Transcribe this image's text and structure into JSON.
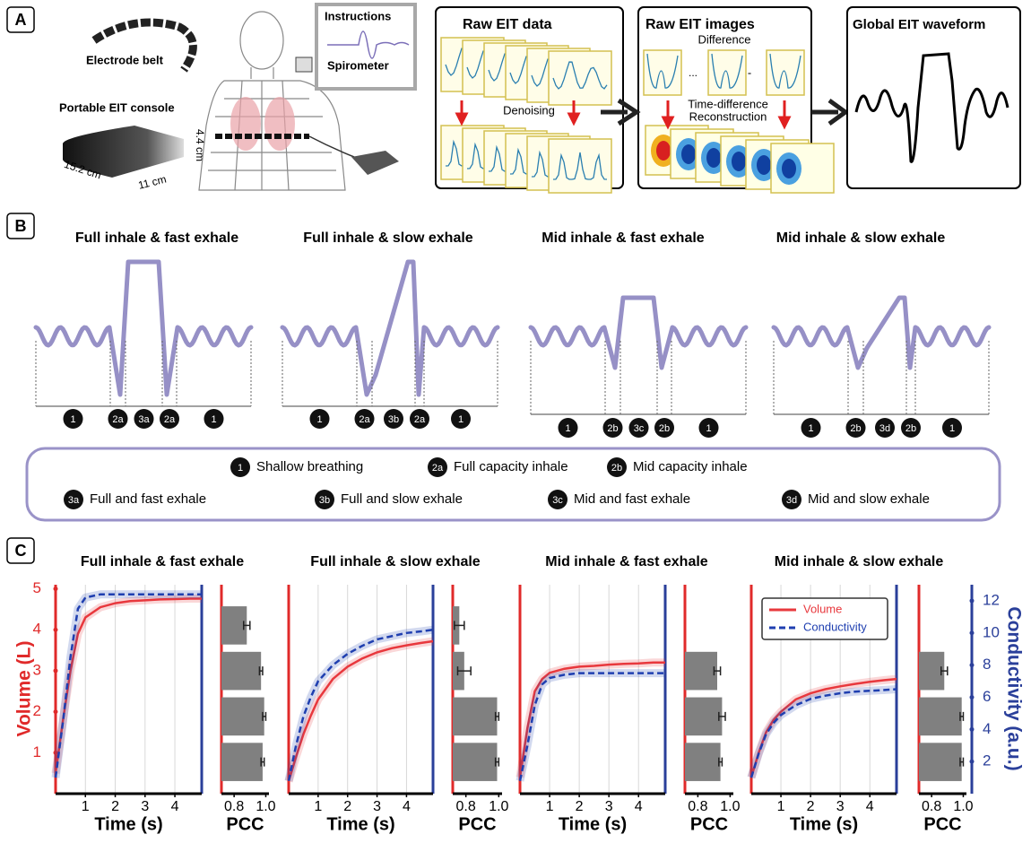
{
  "panel_a": {
    "label": "A",
    "belt": "Electrode belt",
    "console": "Portable EIT console",
    "dims": [
      "15.2 cm",
      "11 cm",
      "4.4 cm"
    ],
    "instructions": "Instructions",
    "spirometer": "Spirometer",
    "raw_data": {
      "title": "Raw EIT data",
      "step": "Denoising"
    },
    "raw_images": {
      "title": "Raw EIT images",
      "step1": "Difference",
      "symbols": [
        "...",
        "-"
      ],
      "step2": [
        "Time-difference",
        "Reconstruction"
      ]
    },
    "waveform_title": "Global EIT waveform"
  },
  "panel_b": {
    "label": "B",
    "patterns": [
      {
        "title": "Full inhale & fast exhale",
        "segments": [
          "1",
          "2a",
          "3a",
          "2a",
          "1"
        ]
      },
      {
        "title": "Full inhale & slow exhale",
        "segments": [
          "1",
          "2a",
          "3b",
          "2a",
          "1"
        ]
      },
      {
        "title": "Mid inhale & fast exhale",
        "segments": [
          "1",
          "2b",
          "3c",
          "2b",
          "1"
        ]
      },
      {
        "title": "Mid inhale & slow exhale",
        "segments": [
          "1",
          "2b",
          "3d",
          "2b",
          "1"
        ]
      }
    ],
    "legend": [
      {
        "badge": "1",
        "text": "Shallow breathing"
      },
      {
        "badge": "2a",
        "text": "Full capacity inhale"
      },
      {
        "badge": "2b",
        "text": "Mid capacity inhale"
      },
      {
        "badge": "3a",
        "text": "Full and fast exhale"
      },
      {
        "badge": "3b",
        "text": "Full and slow exhale"
      },
      {
        "badge": "3c",
        "text": "Mid and fast exhale"
      },
      {
        "badge": "3d",
        "text": "Mid and slow exhale"
      }
    ]
  },
  "panel_c": {
    "label": "C"
  },
  "chart_data": [
    {
      "type": "line",
      "title": "Full inhale & fast exhale",
      "xlabel": "Time (s)",
      "ylabel": "Volume (L)",
      "grid": true,
      "x": [
        0,
        0.25,
        0.5,
        0.75,
        1,
        1.5,
        2,
        2.5,
        3,
        3.5,
        4,
        4.5,
        4.9
      ],
      "xlim": [
        0,
        4.9
      ],
      "xticks": [
        1,
        2,
        3,
        4
      ],
      "ylim": [
        0,
        5.1
      ],
      "yticks": [
        1,
        2,
        3,
        4,
        5
      ],
      "y2lim": [
        0,
        13
      ],
      "series": [
        {
          "name": "Volume",
          "color": "#e8383d",
          "values": [
            0.5,
            1.8,
            3.0,
            3.9,
            4.3,
            4.55,
            4.65,
            4.7,
            4.72,
            4.74,
            4.75,
            4.76,
            4.76
          ]
        },
        {
          "name": "Conductivity",
          "color": "#1f3fb0",
          "axis": "y2",
          "values": [
            1.0,
            4.5,
            8.5,
            11.5,
            12.2,
            12.4,
            12.4,
            12.4,
            12.4,
            12.4,
            12.4,
            12.4,
            12.4
          ]
        }
      ]
    },
    {
      "type": "bar",
      "xlabel": "PCC",
      "xlim": [
        0.72,
        1.02
      ],
      "xticks": [
        0.8,
        {
          "value": 1,
          "label": "1.0"
        }
      ],
      "color": "#808080",
      "values": [
        0.88,
        0.97,
        0.99,
        0.98
      ],
      "errors": [
        0.02,
        0.01,
        0.01,
        0.01
      ]
    },
    {
      "type": "line",
      "title": "Full inhale & slow exhale",
      "xlabel": "Time (s)",
      "grid": true,
      "x": [
        0,
        0.25,
        0.5,
        0.75,
        1,
        1.5,
        2,
        2.5,
        3,
        3.5,
        4,
        4.5,
        4.9
      ],
      "xlim": [
        0,
        4.9
      ],
      "xticks": [
        1,
        2,
        3,
        4
      ],
      "ylim": [
        0,
        5.1
      ],
      "y2lim": [
        0,
        13
      ],
      "series": [
        {
          "name": "Volume",
          "color": "#e8383d",
          "values": [
            0.3,
            0.9,
            1.45,
            1.9,
            2.3,
            2.8,
            3.1,
            3.3,
            3.45,
            3.55,
            3.62,
            3.68,
            3.72
          ]
        },
        {
          "name": "Conductivity",
          "color": "#1f3fb0",
          "axis": "y2",
          "values": [
            0.8,
            3.0,
            4.8,
            6.0,
            7.0,
            8.0,
            8.7,
            9.2,
            9.6,
            9.8,
            10.0,
            10.1,
            10.2
          ]
        }
      ]
    },
    {
      "type": "bar",
      "xlabel": "PCC",
      "xlim": [
        0.72,
        1.02
      ],
      "xticks": [
        0.8,
        {
          "value": 1,
          "label": "1.0"
        }
      ],
      "color": "#808080",
      "values": [
        0.76,
        0.79,
        0.99,
        0.99
      ],
      "errors": [
        0.03,
        0.04,
        0.01,
        0.01
      ]
    },
    {
      "type": "line",
      "title": "Mid inhale & fast exhale",
      "xlabel": "Time (s)",
      "grid": true,
      "x": [
        0,
        0.25,
        0.5,
        0.75,
        1,
        1.5,
        2,
        2.5,
        3,
        3.5,
        4,
        4.5,
        4.9
      ],
      "xlim": [
        0,
        4.9
      ],
      "xticks": [
        1,
        2,
        3,
        4
      ],
      "ylim": [
        0,
        5.1
      ],
      "y2lim": [
        0,
        13
      ],
      "series": [
        {
          "name": "Volume",
          "color": "#e8383d",
          "values": [
            0.4,
            1.6,
            2.5,
            2.8,
            2.95,
            3.05,
            3.1,
            3.12,
            3.15,
            3.17,
            3.18,
            3.2,
            3.2
          ]
        },
        {
          "name": "Conductivity",
          "color": "#1f3fb0",
          "axis": "y2",
          "values": [
            0.8,
            3.0,
            5.5,
            6.8,
            7.2,
            7.4,
            7.5,
            7.5,
            7.5,
            7.5,
            7.5,
            7.5,
            7.5
          ]
        }
      ]
    },
    {
      "type": "bar",
      "xlabel": "PCC",
      "xlim": [
        0.72,
        1.02
      ],
      "xticks": [
        0.8,
        {
          "value": 1,
          "label": "1.0"
        }
      ],
      "color": "#808080",
      "values": [
        null,
        0.92,
        0.95,
        0.94
      ],
      "errors": [
        null,
        0.02,
        0.02,
        0.01
      ]
    },
    {
      "type": "line",
      "title": "Mid inhale & slow exhale",
      "xlabel": "Time (s)",
      "y2label": "Conductivity (a.u.)",
      "grid": true,
      "legend": "upper left",
      "x": [
        0,
        0.25,
        0.5,
        0.75,
        1,
        1.5,
        2,
        2.5,
        3,
        3.5,
        4,
        4.5,
        4.9
      ],
      "xlim": [
        0,
        4.9
      ],
      "xticks": [
        1,
        2,
        3,
        4
      ],
      "ylim": [
        0,
        5.1
      ],
      "y2lim": [
        0,
        13
      ],
      "y2ticks": [
        2,
        4,
        6,
        8,
        10,
        12
      ],
      "series": [
        {
          "name": "Volume",
          "color": "#e8383d",
          "values": [
            0.4,
            1.0,
            1.5,
            1.8,
            2.0,
            2.3,
            2.45,
            2.55,
            2.62,
            2.68,
            2.73,
            2.77,
            2.8
          ]
        },
        {
          "name": "Conductivity",
          "color": "#1f3fb0",
          "axis": "y2",
          "values": [
            1.0,
            2.5,
            3.7,
            4.4,
            4.9,
            5.5,
            5.9,
            6.1,
            6.25,
            6.35,
            6.4,
            6.45,
            6.5
          ]
        }
      ]
    },
    {
      "type": "bar",
      "xlabel": "PCC",
      "xlim": [
        0.72,
        1.02
      ],
      "xticks": [
        0.8,
        {
          "value": 1,
          "label": "1.0"
        }
      ],
      "color": "#808080",
      "values": [
        null,
        0.88,
        0.99,
        0.99
      ],
      "errors": [
        null,
        0.02,
        0.01,
        0.01
      ]
    }
  ]
}
